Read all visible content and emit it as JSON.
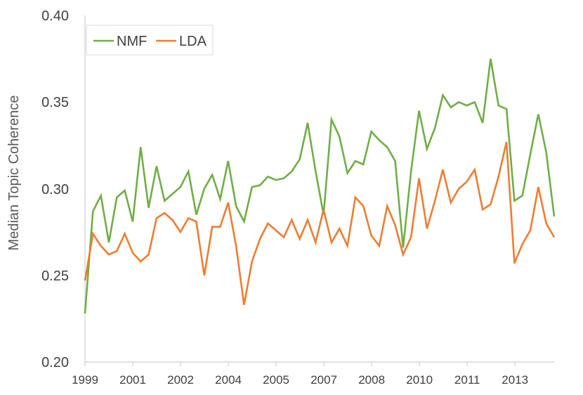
{
  "chart_data": {
    "type": "line",
    "title": "",
    "xlabel": "",
    "ylabel": "Median Topic Coherence",
    "ylim": [
      0.2,
      0.4
    ],
    "yticks": [
      "0.20",
      "0.25",
      "0.30",
      "0.35",
      "0.40"
    ],
    "x_tick_labels": [
      "1999",
      "2001",
      "2002",
      "2004",
      "2005",
      "2007",
      "2008",
      "2010",
      "2011",
      "2013"
    ],
    "grid": false,
    "legend_position": "top-left",
    "series": [
      {
        "name": "NMF",
        "color": "#70AD47",
        "values": [
          0.228,
          0.287,
          0.296,
          0.269,
          0.295,
          0.299,
          0.281,
          0.324,
          0.289,
          0.313,
          0.293,
          0.297,
          0.301,
          0.31,
          0.285,
          0.3,
          0.308,
          0.294,
          0.316,
          0.29,
          0.281,
          0.301,
          0.302,
          0.307,
          0.305,
          0.306,
          0.31,
          0.317,
          0.338,
          0.31,
          0.285,
          0.34,
          0.33,
          0.309,
          0.316,
          0.314,
          0.333,
          0.328,
          0.324,
          0.316,
          0.266,
          0.31,
          0.345,
          0.323,
          0.335,
          0.354,
          0.347,
          0.35,
          0.348,
          0.35,
          0.338,
          0.375,
          0.348,
          0.346,
          0.293,
          0.296,
          0.32,
          0.343,
          0.321,
          0.284
        ]
      },
      {
        "name": "LDA",
        "color": "#ED7D31",
        "values": [
          0.247,
          0.274,
          0.267,
          0.262,
          0.264,
          0.274,
          0.263,
          0.258,
          0.262,
          0.283,
          0.286,
          0.282,
          0.275,
          0.283,
          0.281,
          0.25,
          0.278,
          0.278,
          0.292,
          0.267,
          0.233,
          0.258,
          0.271,
          0.28,
          0.276,
          0.272,
          0.282,
          0.271,
          0.282,
          0.269,
          0.288,
          0.269,
          0.277,
          0.267,
          0.295,
          0.29,
          0.273,
          0.267,
          0.29,
          0.279,
          0.262,
          0.272,
          0.306,
          0.277,
          0.293,
          0.311,
          0.292,
          0.3,
          0.304,
          0.311,
          0.288,
          0.291,
          0.307,
          0.327,
          0.257,
          0.268,
          0.276,
          0.301,
          0.28,
          0.272
        ]
      }
    ]
  }
}
